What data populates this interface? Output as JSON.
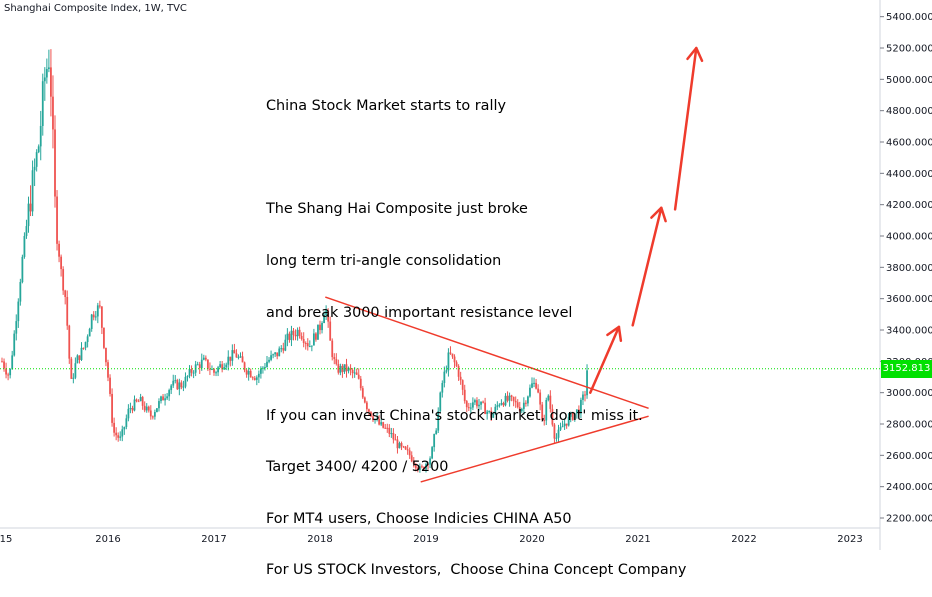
{
  "header": {
    "symbol_title": "Shanghai Composite Index, 1W, TVC"
  },
  "annotation": {
    "lines": [
      "China Stock Market starts to rally",
      "",
      "The Shang Hai Composite just broke",
      "long term tri-angle consolidation",
      "and break 3000 important resistance level",
      "",
      "If you can invest China's stock market, dont' miss it.",
      "Target 3400/ 4200 / 5200",
      "For MT4 users, Choose Indicies CHINA A50",
      "For US STOCK Investors,  Choose China Concept Company"
    ]
  },
  "price_tag": {
    "value": "3152.813",
    "color": "#00e000"
  },
  "colors": {
    "up_candle": "#26a69a",
    "down_candle": "#ef5350",
    "drawing": "#ef3b2c",
    "price_line": "#00e000"
  },
  "chart_data": {
    "type": "candlestick",
    "title": "Shanghai Composite Index, 1W, TVC",
    "x_ticks": [
      "15",
      "2016",
      "2017",
      "2018",
      "2019",
      "2020",
      "2021",
      "2022",
      "2023"
    ],
    "y_ticks": [
      "2200.000",
      "2400.000",
      "2600.000",
      "2800.000",
      "3000.000",
      "3200.000",
      "3400.000",
      "3600.000",
      "3800.000",
      "4000.000",
      "4200.000",
      "4400.000",
      "4600.000",
      "4800.000",
      "5000.000",
      "5200.000",
      "5400.000"
    ],
    "ylim": [
      2150,
      5500
    ],
    "xlim": [
      2015.0,
      2023.4
    ],
    "last_price": 3152.813,
    "weekly_close_path": [
      [
        2015.0,
        3200
      ],
      [
        2015.07,
        3100
      ],
      [
        2015.12,
        3400
      ],
      [
        2015.2,
        3900
      ],
      [
        2015.28,
        4300
      ],
      [
        2015.35,
        4600
      ],
      [
        2015.4,
        5000
      ],
      [
        2015.45,
        5170
      ],
      [
        2015.5,
        4200
      ],
      [
        2015.55,
        3800
      ],
      [
        2015.6,
        3600
      ],
      [
        2015.65,
        3050
      ],
      [
        2015.7,
        3200
      ],
      [
        2015.78,
        3300
      ],
      [
        2015.85,
        3500
      ],
      [
        2015.92,
        3550
      ],
      [
        2016.0,
        3100
      ],
      [
        2016.05,
        2750
      ],
      [
        2016.12,
        2700
      ],
      [
        2016.2,
        2900
      ],
      [
        2016.3,
        2950
      ],
      [
        2016.4,
        2850
      ],
      [
        2016.5,
        2950
      ],
      [
        2016.6,
        3050
      ],
      [
        2016.7,
        3050
      ],
      [
        2016.8,
        3150
      ],
      [
        2016.9,
        3200
      ],
      [
        2017.0,
        3130
      ],
      [
        2017.1,
        3200
      ],
      [
        2017.2,
        3250
      ],
      [
        2017.3,
        3150
      ],
      [
        2017.4,
        3100
      ],
      [
        2017.5,
        3200
      ],
      [
        2017.6,
        3250
      ],
      [
        2017.7,
        3350
      ],
      [
        2017.8,
        3400
      ],
      [
        2017.9,
        3300
      ],
      [
        2018.0,
        3420
      ],
      [
        2018.05,
        3560
      ],
      [
        2018.1,
        3300
      ],
      [
        2018.15,
        3150
      ],
      [
        2018.25,
        3150
      ],
      [
        2018.35,
        3100
      ],
      [
        2018.45,
        2900
      ],
      [
        2018.55,
        2800
      ],
      [
        2018.65,
        2750
      ],
      [
        2018.75,
        2650
      ],
      [
        2018.85,
        2600
      ],
      [
        2018.95,
        2500
      ],
      [
        2019.05,
        2600
      ],
      [
        2019.1,
        2800
      ],
      [
        2019.15,
        3050
      ],
      [
        2019.22,
        3250
      ],
      [
        2019.3,
        3150
      ],
      [
        2019.38,
        2900
      ],
      [
        2019.45,
        2950
      ],
      [
        2019.55,
        2900
      ],
      [
        2019.62,
        2850
      ],
      [
        2019.7,
        2950
      ],
      [
        2019.8,
        2950
      ],
      [
        2019.9,
        2900
      ],
      [
        2020.0,
        3050
      ],
      [
        2020.05,
        3060
      ],
      [
        2020.1,
        2780
      ],
      [
        2020.15,
        3000
      ],
      [
        2020.22,
        2700
      ],
      [
        2020.3,
        2800
      ],
      [
        2020.38,
        2850
      ],
      [
        2020.45,
        2900
      ],
      [
        2020.5,
        3000
      ],
      [
        2020.52,
        3152.813
      ]
    ],
    "triangle": {
      "upper_line": {
        "from": [
          2018.05,
          3610
        ],
        "to": [
          2021.1,
          2900
        ]
      },
      "lower_line": {
        "from": [
          2018.95,
          2430
        ],
        "to": [
          2021.1,
          2850
        ]
      }
    },
    "target_arrows": [
      {
        "from": [
          2020.55,
          3000
        ],
        "to": [
          2020.82,
          3420
        ]
      },
      {
        "from": [
          2020.95,
          3430
        ],
        "to": [
          2021.22,
          4180
        ]
      },
      {
        "from": [
          2021.35,
          4170
        ],
        "to": [
          2021.55,
          5200
        ]
      }
    ]
  }
}
